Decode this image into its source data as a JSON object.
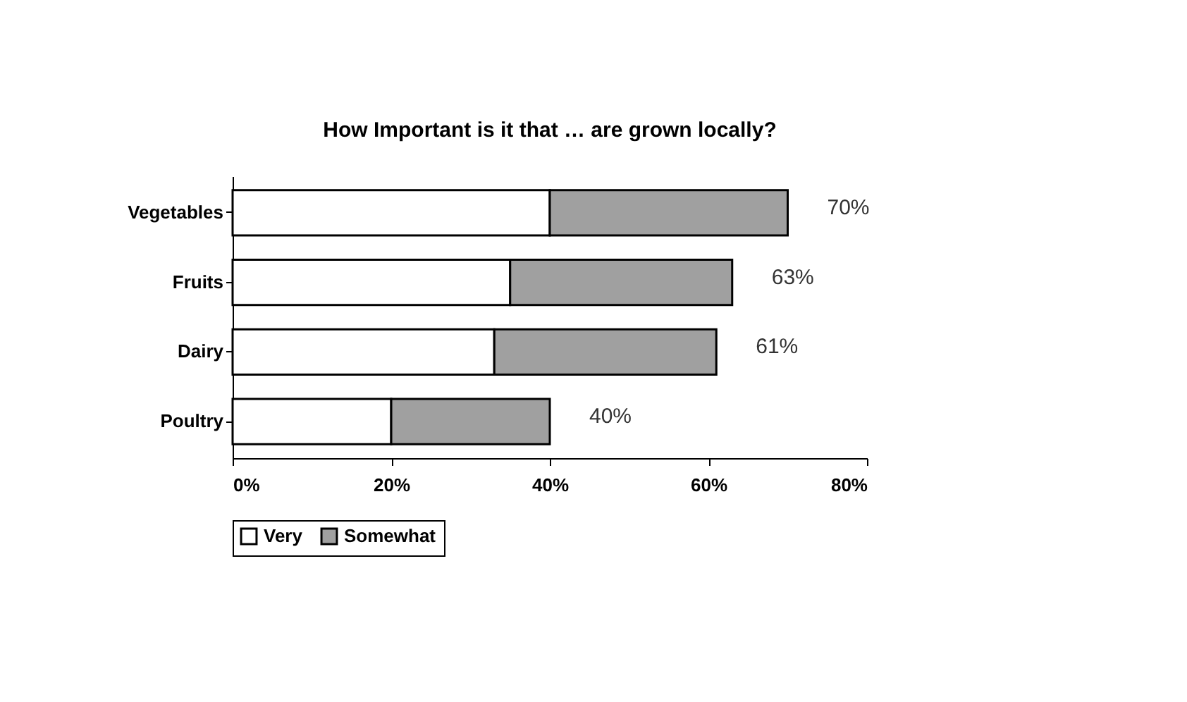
{
  "chart_data": {
    "type": "bar",
    "orientation": "horizontal",
    "stacked": true,
    "title": "How Important is it that … are grown locally?",
    "categories": [
      "Vegetables",
      "Fruits",
      "Dairy",
      "Poultry"
    ],
    "series": [
      {
        "name": "Very",
        "color": "#ffffff",
        "values": [
          40,
          35,
          33,
          20
        ]
      },
      {
        "name": "Somewhat",
        "color": "#a0a0a0",
        "values": [
          30,
          28,
          28,
          20
        ]
      }
    ],
    "totals": [
      "70%",
      "63%",
      "61%",
      "40%"
    ],
    "xlim": [
      0,
      80
    ],
    "xticks": [
      {
        "value": 0,
        "label": "0%"
      },
      {
        "value": 20,
        "label": "20%"
      },
      {
        "value": 40,
        "label": "40%"
      },
      {
        "value": 60,
        "label": "60%"
      },
      {
        "value": 80,
        "label": "80%"
      }
    ],
    "grid": false,
    "legend": "bottom"
  }
}
